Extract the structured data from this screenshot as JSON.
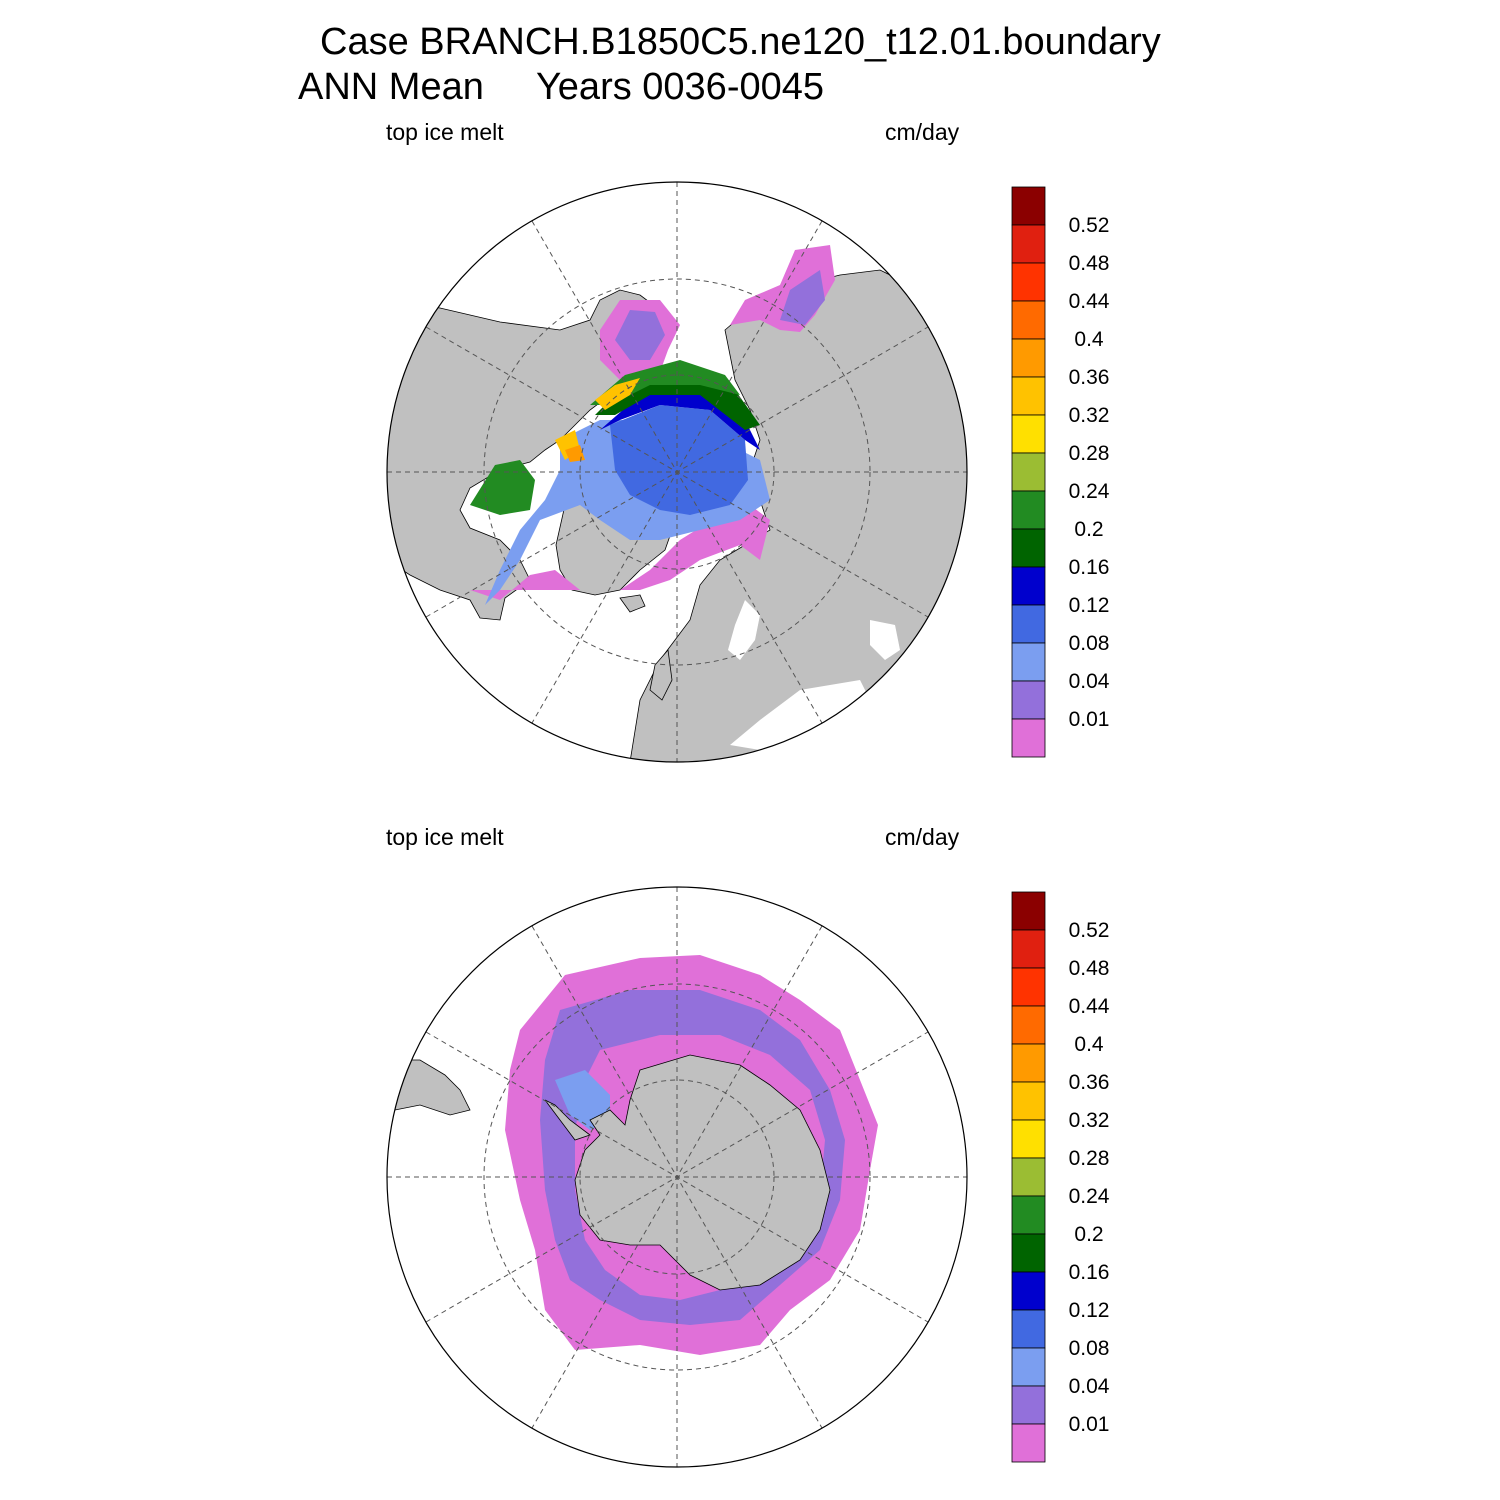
{
  "title": {
    "line1": "Case BRANCH.B1850C5.ne120_t12.01.boundary",
    "line2": "ANN Mean     Years 0036-0045"
  },
  "panels": [
    {
      "id": "north",
      "variable_label": "top ice melt",
      "units_label": "cm/day",
      "hemisphere": "north"
    },
    {
      "id": "south",
      "variable_label": "top ice melt",
      "units_label": "cm/day",
      "hemisphere": "south"
    }
  ],
  "colorbar": {
    "levels": [
      "0.01",
      "0.04",
      "0.08",
      "0.12",
      "0.16",
      "0.2",
      "0.24",
      "0.28",
      "0.32",
      "0.36",
      "0.4",
      "0.44",
      "0.48",
      "0.52"
    ],
    "colors": [
      "#e070d8",
      "#9370db",
      "#7b9ef0",
      "#4169e1",
      "#0000cd",
      "#006400",
      "#228b22",
      "#9bbd33",
      "#ffe000",
      "#ffc200",
      "#ff9a00",
      "#ff6a00",
      "#ff3300",
      "#e02010",
      "#8b0000"
    ]
  },
  "map_colors": {
    "land": "#c0c0c0",
    "ocean": "#ffffff",
    "grid": "#555555"
  }
}
